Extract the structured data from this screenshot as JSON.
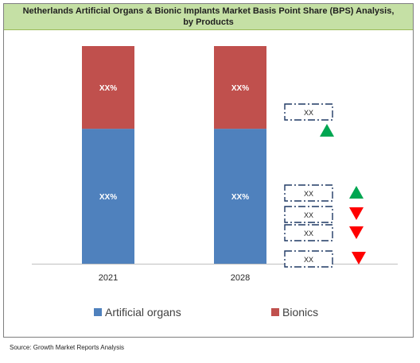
{
  "chart_data": {
    "type": "bar",
    "stacked": true,
    "title": "Netherlands Artificial Organs & Bionic Implants Market Basis Point Share (BPS) Analysis, by Products",
    "categories": [
      "2021",
      "2028"
    ],
    "series": [
      {
        "name": "Artificial organs",
        "color": "#4f81bd",
        "values": [
          0.62,
          0.62
        ],
        "labels": [
          "XX%",
          "XX%"
        ]
      },
      {
        "name": "Bionics",
        "color": "#c0504d",
        "values": [
          0.38,
          0.38
        ],
        "labels": [
          "XX%",
          "XX%"
        ]
      }
    ],
    "ylim": [
      0,
      1
    ],
    "legend": "bottom",
    "grid": false,
    "annotations": [
      {
        "text": "XX",
        "trend": "up",
        "color": "#00a651"
      },
      {
        "text": "XX",
        "trend": "up",
        "color": "#00a651"
      },
      {
        "text": "XX",
        "trend": "down",
        "color": "#ff0000"
      },
      {
        "text": "XX",
        "trend": "down",
        "color": "#ff0000"
      },
      {
        "text": "XX",
        "trend": "down",
        "color": "#ff0000"
      }
    ]
  },
  "source": "Source: Growth Market Reports Analysis"
}
